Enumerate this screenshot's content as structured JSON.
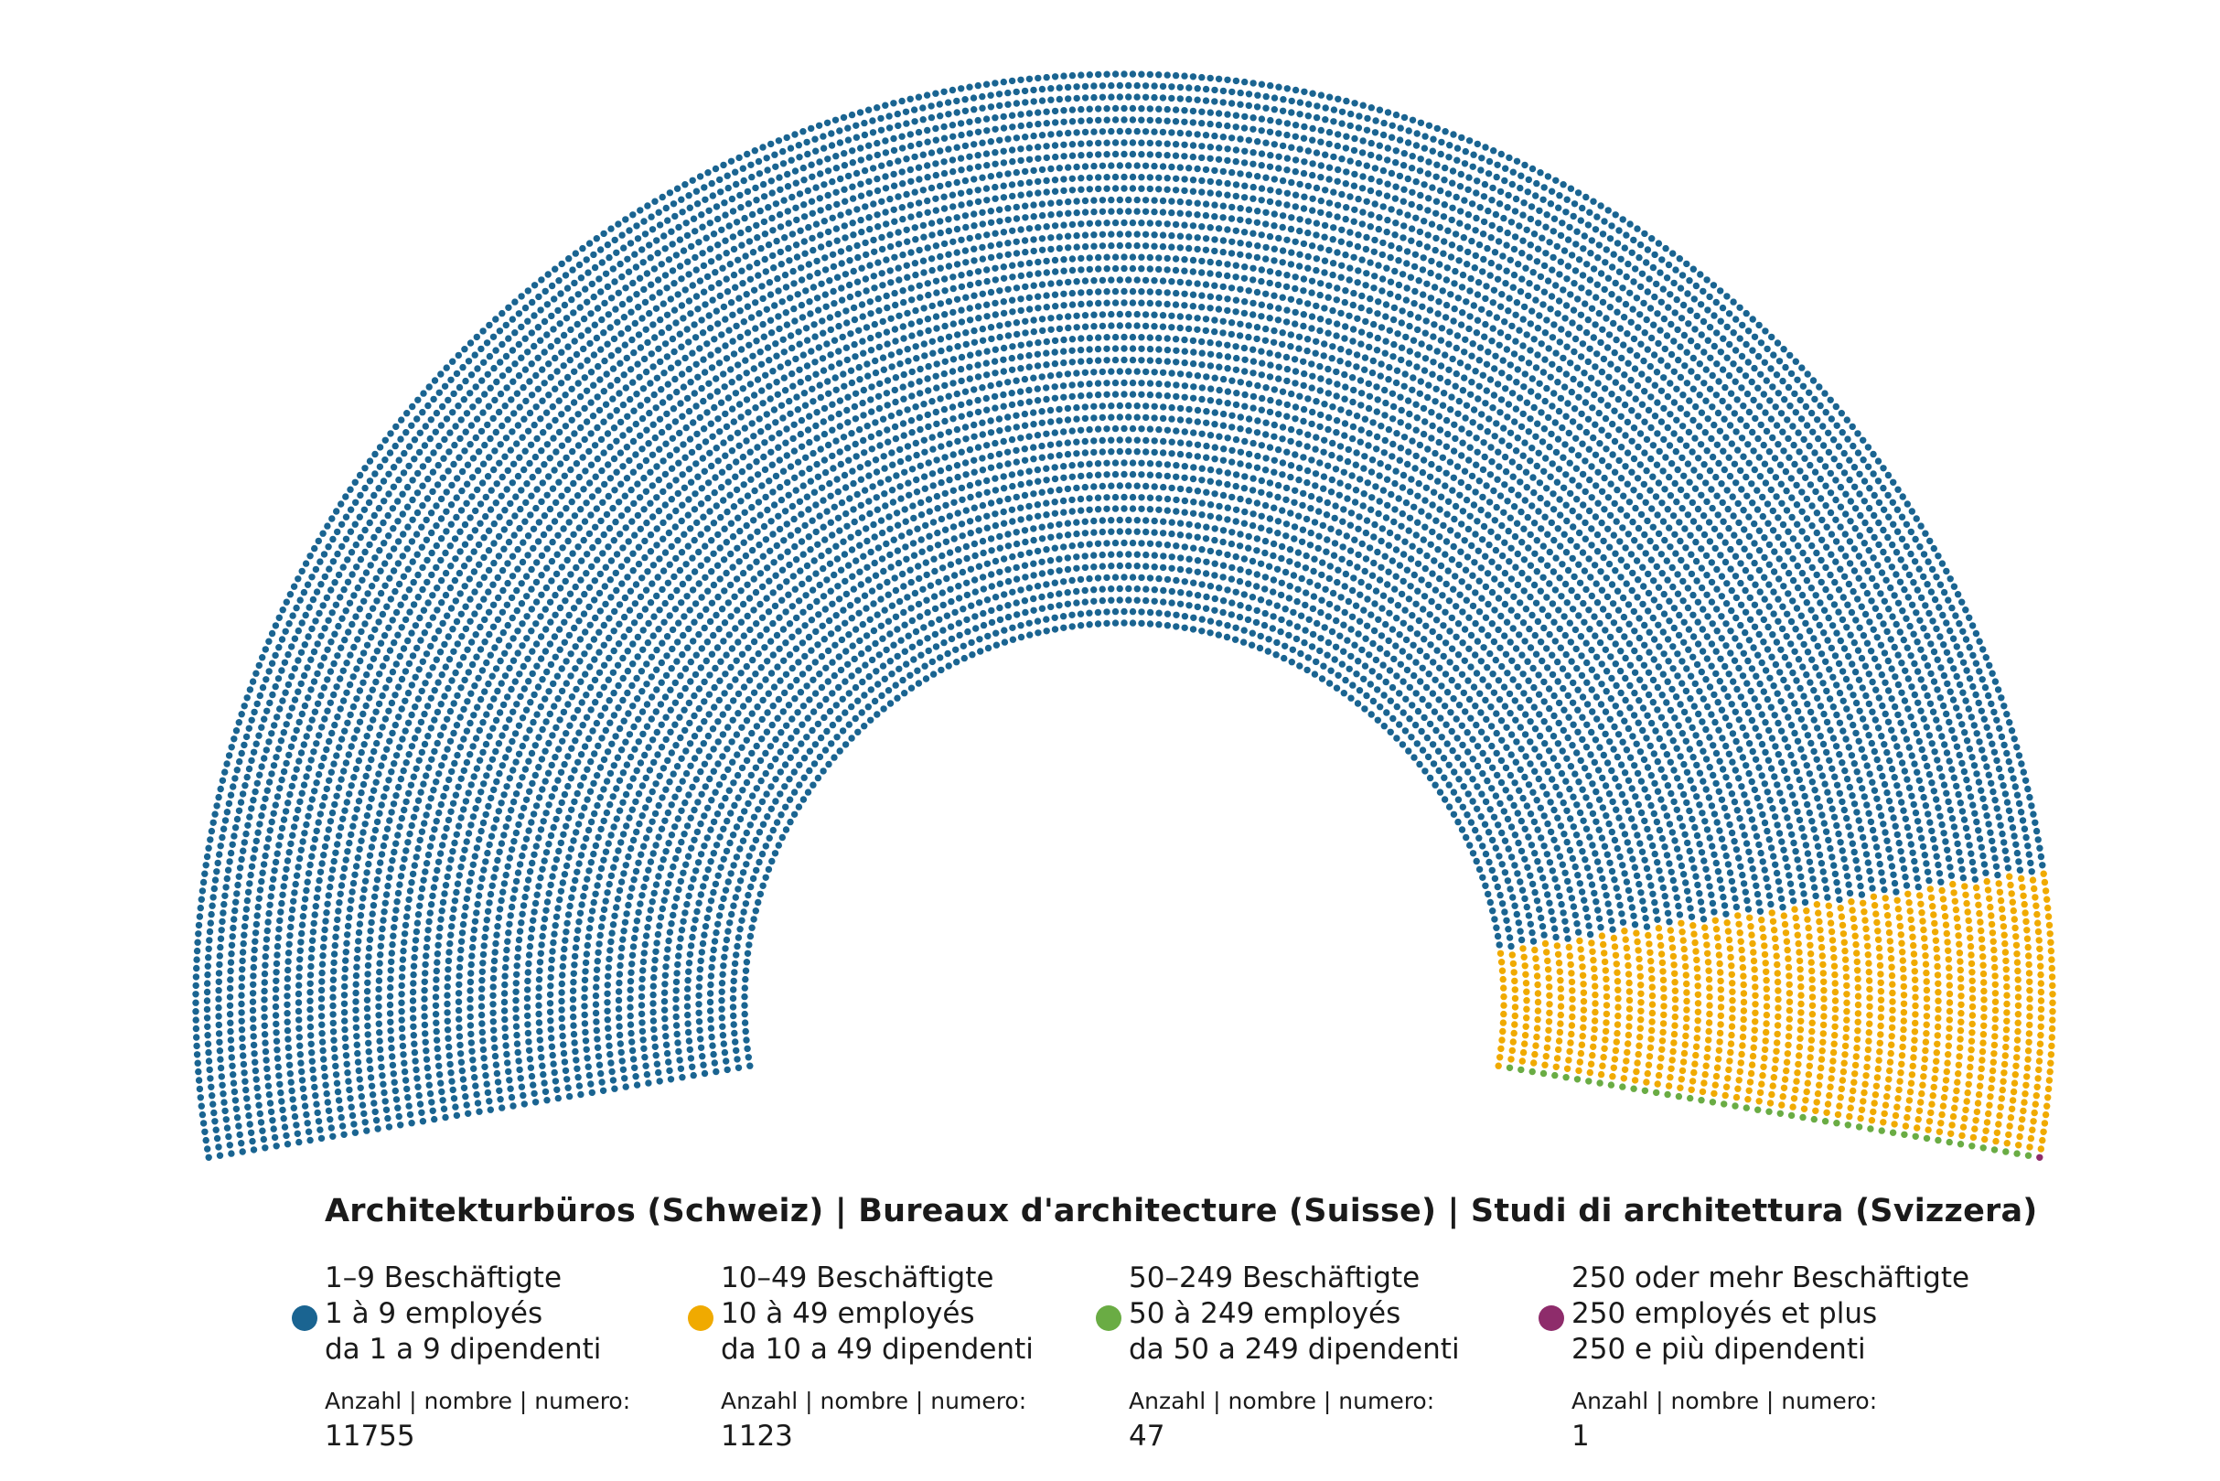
{
  "chart_data": {
    "type": "parliament",
    "title": "Architekturbüros (Schweiz) | Bureaux d'architecture (Suisse) | Studi di architettura (Svizzera)",
    "legend_placement": "bottom",
    "count_label": "Anzahl | nombre | numero:",
    "series": [
      {
        "lines": [
          "1–9 Beschäftigte",
          "1 à 9 employés",
          "da 1 a 9 dipendenti"
        ],
        "value": 11755,
        "count_text": "11755",
        "color": "#1a6491"
      },
      {
        "lines": [
          "10–49 Beschäftigte",
          "10 à 49 employés",
          "da 10 a 49 dipendenti"
        ],
        "value": 1123,
        "count_text": "1123",
        "color": "#f0aa00"
      },
      {
        "lines": [
          "50–249 Beschäftigte",
          "50 à 249 employés",
          "da 50 a 249 dipendenti"
        ],
        "value": 47,
        "count_text": "47",
        "color": "#6aac44"
      },
      {
        "lines": [
          "250 oder mehr Beschäftigte",
          "250 employés et plus",
          "250 e più dipendenti"
        ],
        "value": 1,
        "count_text": "1",
        "color": "#8e2c6b"
      }
    ]
  }
}
